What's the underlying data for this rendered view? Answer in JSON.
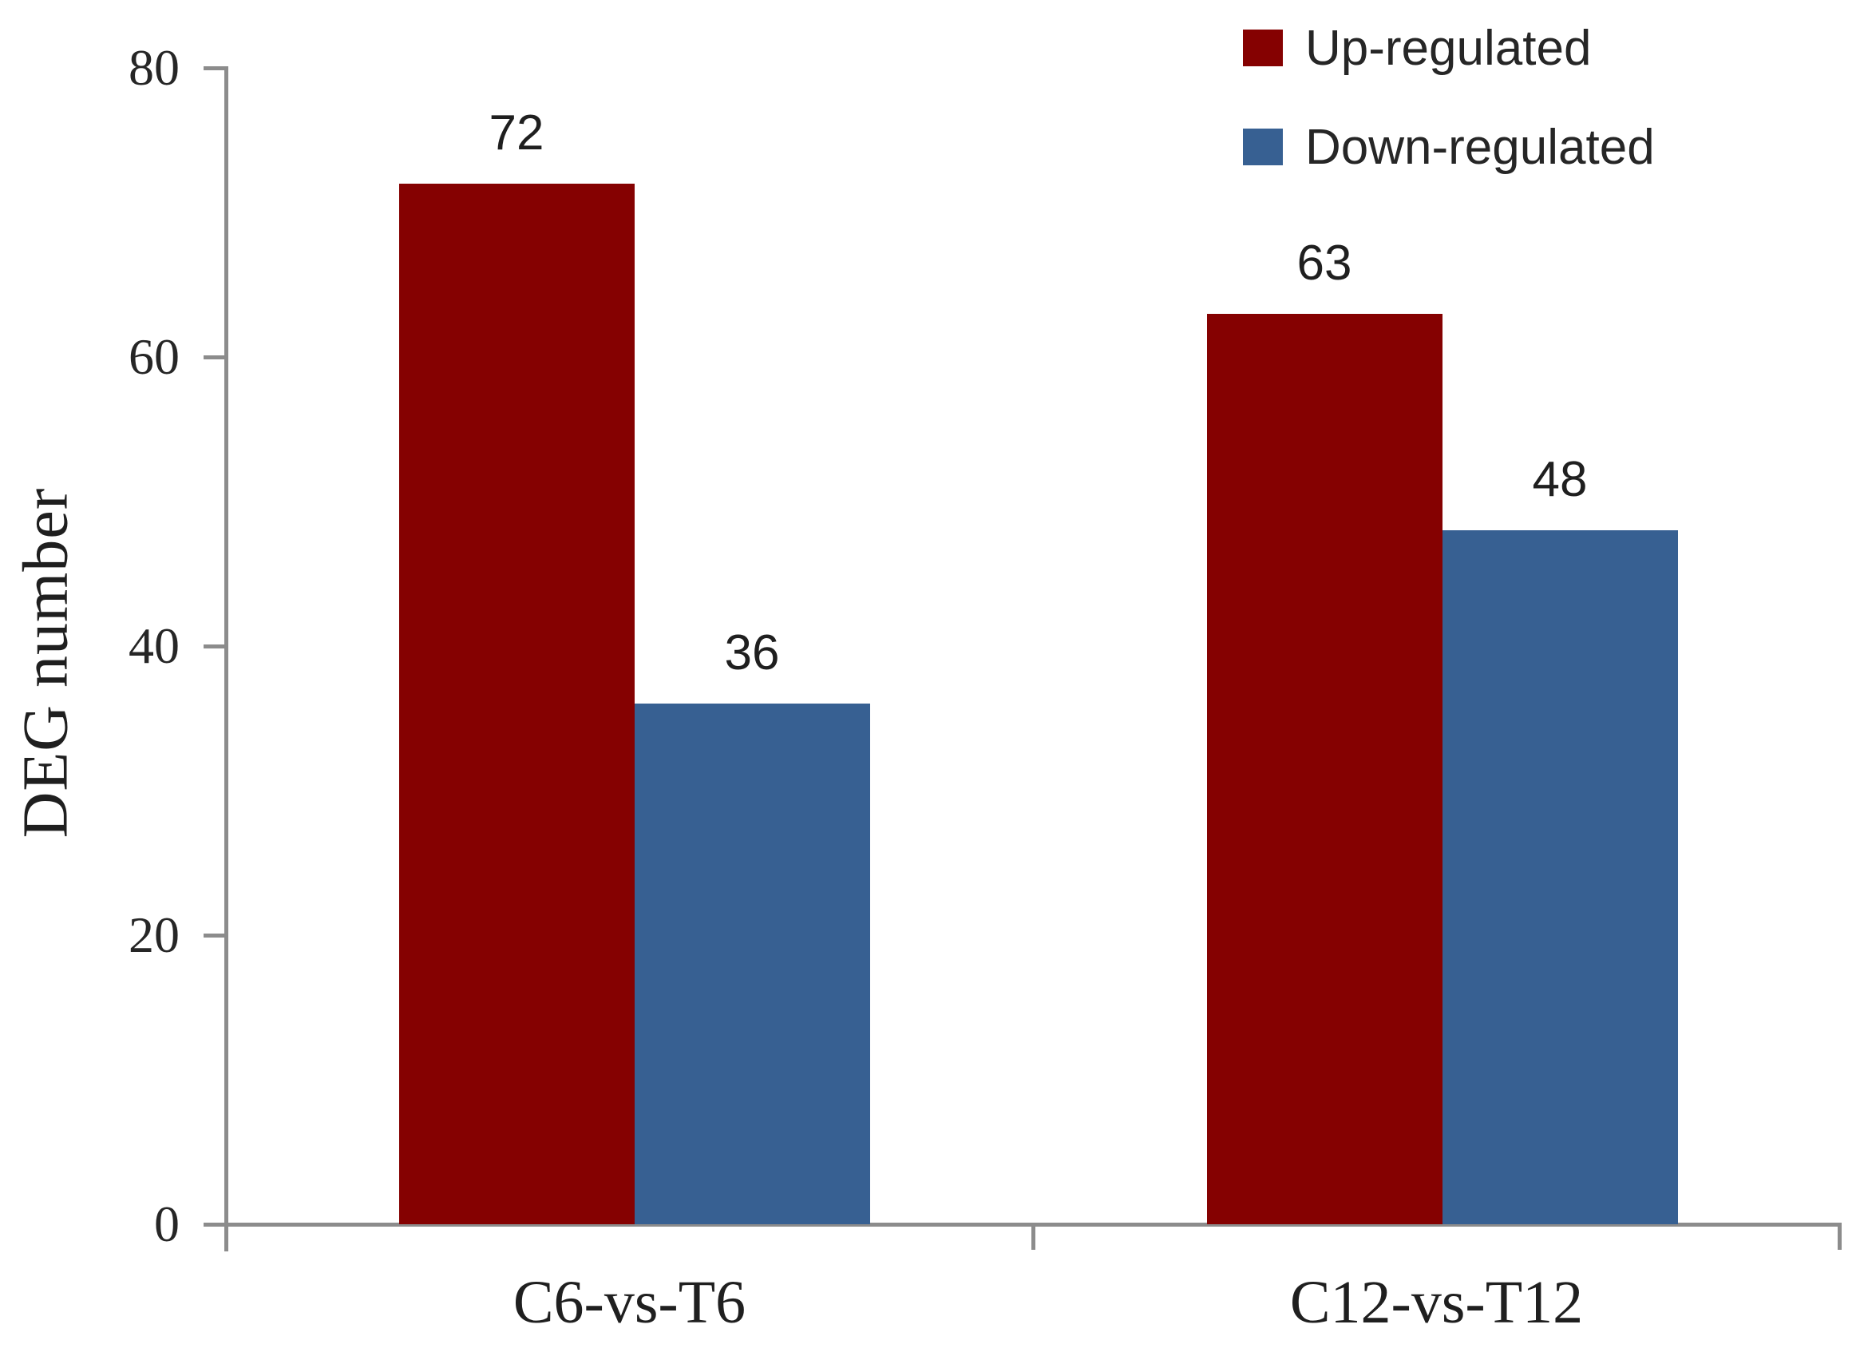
{
  "chart_data": {
    "type": "bar",
    "title": "",
    "categories": [
      "C6-vs-T6",
      "C12-vs-T12"
    ],
    "series": [
      {
        "name": "Up-regulated",
        "color": "#850101",
        "values": [
          72,
          63
        ]
      },
      {
        "name": "Down-regulated",
        "color": "#376092",
        "values": [
          36,
          48
        ]
      }
    ],
    "xlabel": "",
    "ylabel": "DEG number",
    "ylim": [
      0,
      80
    ],
    "yticks": [
      0,
      20,
      40,
      60,
      80
    ],
    "grid": false,
    "legend_position": "top-right",
    "data_labels": true,
    "axis_color": "#8C8C8C",
    "text_color": "#262626",
    "background_color": "#ffffff"
  }
}
